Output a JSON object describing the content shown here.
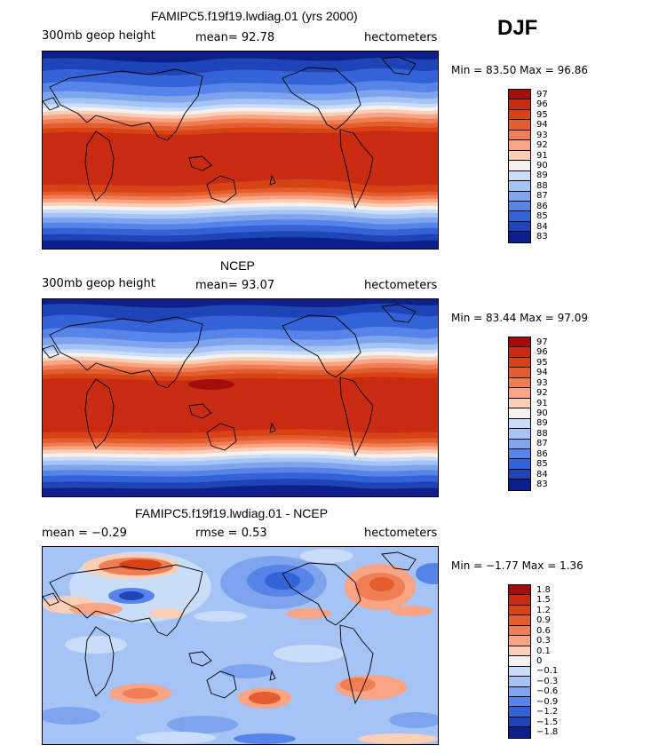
{
  "season": "DJF",
  "chart_data": [
    {
      "type": "heatmap",
      "title": "FAMIPC5.f19f19.lwdiag.01 (yrs 2000)",
      "left_label": "300mb geop height",
      "mean_text": "mean=  92.78",
      "units": "hectometers",
      "minmax_text": "Min =  83.50 Max =  96.86",
      "colorbar_levels": [
        "97",
        "96",
        "95",
        "94",
        "93",
        "92",
        "91",
        "90",
        "89",
        "88",
        "87",
        "86",
        "85",
        "84",
        "83"
      ],
      "colorbar_colors": [
        "#a30d0a",
        "#c82b12",
        "#d84316",
        "#e45d2e",
        "#f07e55",
        "#f8a485",
        "#fbcfb6",
        "#f5f1ee",
        "#c9dcf8",
        "#a5c4f5",
        "#7ea4ee",
        "#5784e8",
        "#3463d8",
        "#1f44b8",
        "#0d1f8a"
      ],
      "field_description": "zonal bands: high values in tropics, low near poles"
    },
    {
      "type": "heatmap",
      "title": "NCEP",
      "left_label": "300mb geop height",
      "mean_text": "mean=  93.07",
      "units": "hectometers",
      "minmax_text": "Min =  83.44 Max =  97.09",
      "colorbar_levels": [
        "97",
        "96",
        "95",
        "94",
        "93",
        "92",
        "91",
        "90",
        "89",
        "88",
        "87",
        "86",
        "85",
        "84",
        "83"
      ],
      "colorbar_colors": [
        "#a30d0a",
        "#c82b12",
        "#d84316",
        "#e45d2e",
        "#f07e55",
        "#f8a485",
        "#fbcfb6",
        "#f5f1ee",
        "#c9dcf8",
        "#a5c4f5",
        "#7ea4ee",
        "#5784e8",
        "#3463d8",
        "#1f44b8",
        "#0d1f8a"
      ]
    },
    {
      "type": "heatmap",
      "title": "FAMIPC5.f19f19.lwdiag.01 - NCEP",
      "mean_text": "mean =  −0.29",
      "rmse_text": "rmse =   0.53",
      "units": "hectometers",
      "minmax_text": "Min =  −1.77 Max =   1.36",
      "colorbar_levels": [
        "1.8",
        "1.5",
        "1.2",
        "0.9",
        "0.6",
        "0.3",
        "0.1",
        "0",
        "−0.1",
        "−0.3",
        "−0.6",
        "−0.9",
        "−1.2",
        "−1.5",
        "−1.8"
      ],
      "colorbar_colors": [
        "#a30d0a",
        "#c82b12",
        "#d84316",
        "#e45d2e",
        "#f07e55",
        "#f8a485",
        "#fbcfb6",
        "#f5f1ee",
        "#c9dcf8",
        "#a5c4f5",
        "#7ea4ee",
        "#5784e8",
        "#3463d8",
        "#1f44b8",
        "#0d1f8a"
      ]
    }
  ]
}
